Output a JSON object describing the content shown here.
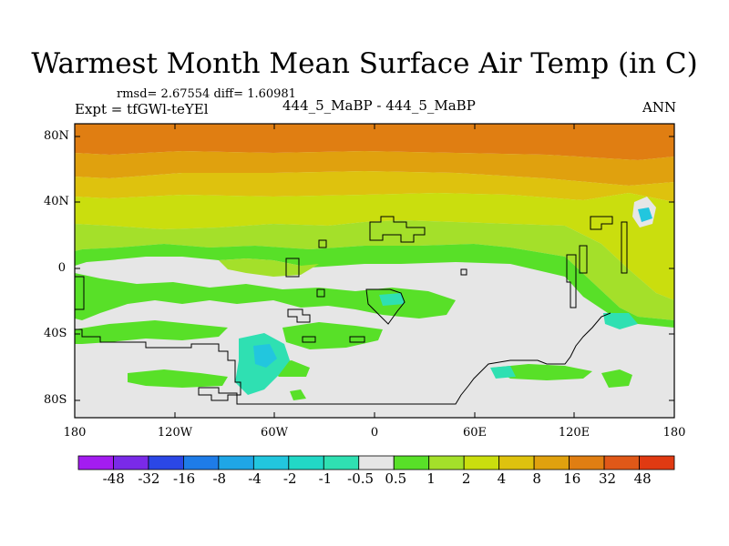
{
  "title": "Warmest Month Mean Surface Air Temp (in C)",
  "stats": "rmsd= 2.67554  diff= 1.60981",
  "experiment": "Expt = tfGWl-teYEl",
  "comparison": "444_5_MaBP - 444_5_MaBP",
  "season": "ANN",
  "lat_labels": [
    "80N",
    "40N",
    "0",
    "40S",
    "80S"
  ],
  "lon_labels": [
    "180",
    "120W",
    "60W",
    "0",
    "60E",
    "120E",
    "180"
  ],
  "colorbar": {
    "labels": [
      "-48",
      "-32",
      "-16",
      "-8",
      "-4",
      "-2",
      "-1",
      "-0.5",
      "0.5",
      "1",
      "2",
      "4",
      "8",
      "16",
      "32",
      "48"
    ],
    "colors": [
      "#a31cf0",
      "#7a2ae8",
      "#2b47e6",
      "#1e7ce8",
      "#1fa6e6",
      "#22c6de",
      "#22d8c6",
      "#2fe0b2",
      "#e6e6e6",
      "#58e028",
      "#a4e02a",
      "#cade0e",
      "#dec20e",
      "#e0a10e",
      "#e07e12",
      "#e05818",
      "#e03a12"
    ]
  },
  "map_colors": {
    "neutral": "#e6e6e6",
    "band_green": "#58e028",
    "band_yellowgreen": "#a4e02a",
    "band_yellow": "#cade0e",
    "band_gold": "#dec20e",
    "band_orange": "#e0a10e",
    "band_darkorange": "#e07e12",
    "negative_cyan": "#22c6de",
    "negative_teal": "#2fe0b2"
  }
}
